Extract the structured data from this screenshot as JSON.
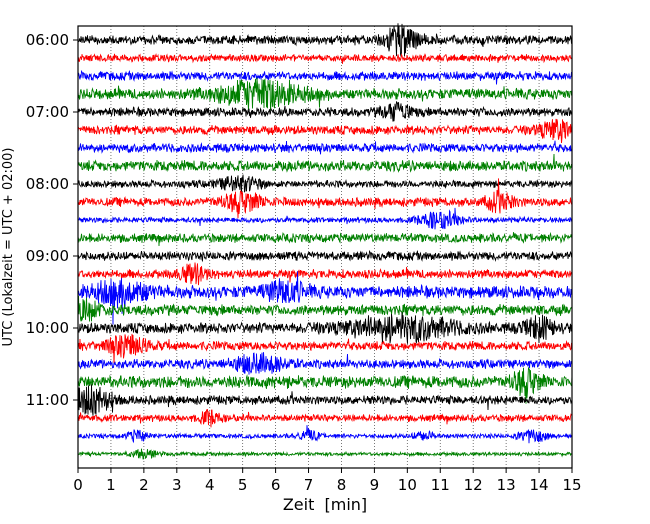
{
  "chart_data": {
    "type": "line",
    "title": "",
    "xlabel": "Zeit  [min]",
    "ylabel": "UTC (Lokalzeit = UTC + 02:00)",
    "xlim": [
      0,
      15
    ],
    "xticks": [
      "0",
      "1",
      "2",
      "3",
      "4",
      "5",
      "6",
      "7",
      "8",
      "9",
      "10",
      "11",
      "12",
      "13",
      "14",
      "15"
    ],
    "yticks": [
      "06:00",
      "07:00",
      "08:00",
      "09:00",
      "10:00",
      "11:00"
    ],
    "grid": "vertical dotted at each minute",
    "row_minutes": 15,
    "colors": [
      "#000000",
      "#ff0000",
      "#0000ff",
      "#008000"
    ],
    "traces": [
      {
        "start": "06:00",
        "level": 5,
        "events": [
          [
            9.8,
            14,
            0.5
          ]
        ]
      },
      {
        "start": "06:15",
        "level": 4,
        "events": []
      },
      {
        "start": "06:30",
        "level": 5,
        "events": []
      },
      {
        "start": "06:45",
        "level": 6,
        "events": [
          [
            5.5,
            13,
            1.2
          ]
        ]
      },
      {
        "start": "07:00",
        "level": 5,
        "events": [
          [
            9.7,
            8,
            0.4
          ]
        ]
      },
      {
        "start": "07:15",
        "level": 5,
        "events": [
          [
            14.6,
            9,
            0.6
          ]
        ]
      },
      {
        "start": "07:30",
        "level": 5,
        "events": []
      },
      {
        "start": "07:45",
        "level": 6,
        "events": []
      },
      {
        "start": "08:00",
        "level": 4,
        "events": [
          [
            4.9,
            7,
            0.6
          ]
        ]
      },
      {
        "start": "08:15",
        "level": 5,
        "events": [
          [
            5,
            8,
            0.6
          ],
          [
            12.8,
            8,
            0.4
          ]
        ]
      },
      {
        "start": "08:30",
        "level": 3,
        "events": [
          [
            11,
            8,
            0.6
          ]
        ]
      },
      {
        "start": "08:45",
        "level": 5,
        "events": []
      },
      {
        "start": "09:00",
        "level": 5,
        "events": []
      },
      {
        "start": "09:15",
        "level": 5,
        "events": [
          [
            3.5,
            8,
            0.4
          ]
        ]
      },
      {
        "start": "09:30",
        "level": 7,
        "events": [
          [
            1.3,
            10,
            0.8
          ],
          [
            6.3,
            9,
            0.6
          ]
        ]
      },
      {
        "start": "09:45",
        "level": 6,
        "events": [
          [
            0.3,
            9,
            0.4
          ]
        ]
      },
      {
        "start": "10:00",
        "level": 6,
        "events": [
          [
            9.8,
            11,
            1.6
          ],
          [
            14,
            10,
            0.4
          ]
        ]
      },
      {
        "start": "10:15",
        "level": 5,
        "events": [
          [
            1.5,
            9,
            0.6
          ]
        ]
      },
      {
        "start": "10:30",
        "level": 5,
        "events": [
          [
            5.5,
            8,
            0.8
          ]
        ]
      },
      {
        "start": "10:45",
        "level": 7,
        "events": [
          [
            13.6,
            10,
            0.4
          ]
        ]
      },
      {
        "start": "11:00",
        "level": 5,
        "events": [
          [
            0.4,
            13,
            0.6
          ]
        ]
      },
      {
        "start": "11:15",
        "level": 4,
        "events": [
          [
            4,
            6,
            0.3
          ]
        ]
      },
      {
        "start": "11:30",
        "level": 2.5,
        "events": [
          [
            1.8,
            5,
            0.3
          ],
          [
            7,
            5,
            0.3
          ],
          [
            10.5,
            4,
            0.3
          ],
          [
            13.8,
            6,
            0.4
          ]
        ]
      },
      {
        "start": "11:45",
        "level": 2,
        "events": [
          [
            2,
            4,
            0.4
          ]
        ]
      }
    ]
  }
}
